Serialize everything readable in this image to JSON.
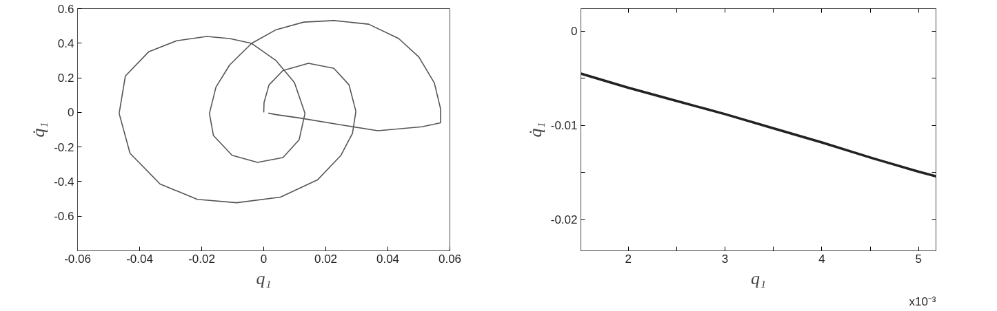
{
  "chart_data": [
    {
      "type": "line",
      "xlabel": "q₁",
      "ylabel": "q̇₁",
      "xlim": [
        -0.06,
        0.06
      ],
      "ylim": [
        -0.8,
        0.6
      ],
      "xticks": [
        -0.06,
        -0.04,
        -0.02,
        0,
        0.02,
        0.04,
        0.06
      ],
      "yticks": [
        -0.6,
        -0.4,
        -0.2,
        0,
        0.2,
        0.4,
        0.6
      ],
      "x": [
        0,
        0.0001,
        0.0017,
        0.0062,
        0.0144,
        0.0226,
        0.0275,
        0.0297,
        0.0286,
        0.0249,
        0.0174,
        0.0054,
        -0.0087,
        -0.0214,
        -0.0334,
        -0.0431,
        -0.0466,
        -0.0446,
        -0.0371,
        -0.0281,
        -0.0184,
        -0.011,
        -0.0039,
        0.004,
        0.0099,
        0.0133,
        0.0114,
        0.0062,
        -0.002,
        -0.0102,
        -0.0162,
        -0.0175,
        -0.0154,
        -0.011,
        -0.0039,
        0.004,
        0.0129,
        0.0226,
        0.0338,
        0.0435,
        0.05,
        0.055,
        0.057,
        0.057,
        0.051,
        0.0368,
        0.0263,
        0.0114,
        0.004,
        0.0015
      ],
      "series": [
        {
          "color": "#555555",
          "values": [
            0,
            0.057,
            0.159,
            0.242,
            0.284,
            0.255,
            0.159,
            0.006,
            -0.121,
            -0.248,
            -0.389,
            -0.49,
            -0.522,
            -0.503,
            -0.414,
            -0.236,
            -0.006,
            0.21,
            0.35,
            0.414,
            0.439,
            0.427,
            0.399,
            0.299,
            0.172,
            -0.006,
            -0.159,
            -0.261,
            -0.289,
            -0.248,
            -0.134,
            -0.006,
            0.146,
            0.274,
            0.399,
            0.478,
            0.522,
            0.531,
            0.51,
            0.427,
            0.32,
            0.17,
            0.02,
            -0.06,
            -0.083,
            -0.106,
            -0.076,
            -0.032,
            -0.013,
            -0.004
          ]
        }
      ]
    },
    {
      "type": "line",
      "xlabel": "q₁",
      "ylabel": "q̇₁",
      "xlim": [
        1.51,
        5.18
      ],
      "ylim": [
        -0.0233,
        0.0024
      ],
      "xticks": [
        2,
        {
          "value": 2.5,
          "label": null
        },
        3,
        {
          "value": 3.5,
          "label": null
        },
        4,
        {
          "value": 4.5,
          "label": null
        },
        5
      ],
      "yticks": [
        {
          "value": -0.02,
          "label": "-0.02"
        },
        {
          "value": -0.015,
          "label": null
        },
        {
          "value": -0.01,
          "label": "-0.01"
        },
        {
          "value": -0.005,
          "label": null
        },
        {
          "value": 0,
          "label": "0"
        }
      ],
      "x": [
        1.51,
        2,
        2.5,
        3,
        3.5,
        4,
        4.5,
        5,
        5.18
      ],
      "series": [
        {
          "color": "#222222",
          "values": [
            -0.0045,
            -0.006,
            -0.0074,
            -0.0088,
            -0.0103,
            -0.0118,
            -0.0134,
            -0.0149,
            -0.0154
          ]
        }
      ],
      "annotations": [
        "x10⁻³"
      ]
    }
  ]
}
